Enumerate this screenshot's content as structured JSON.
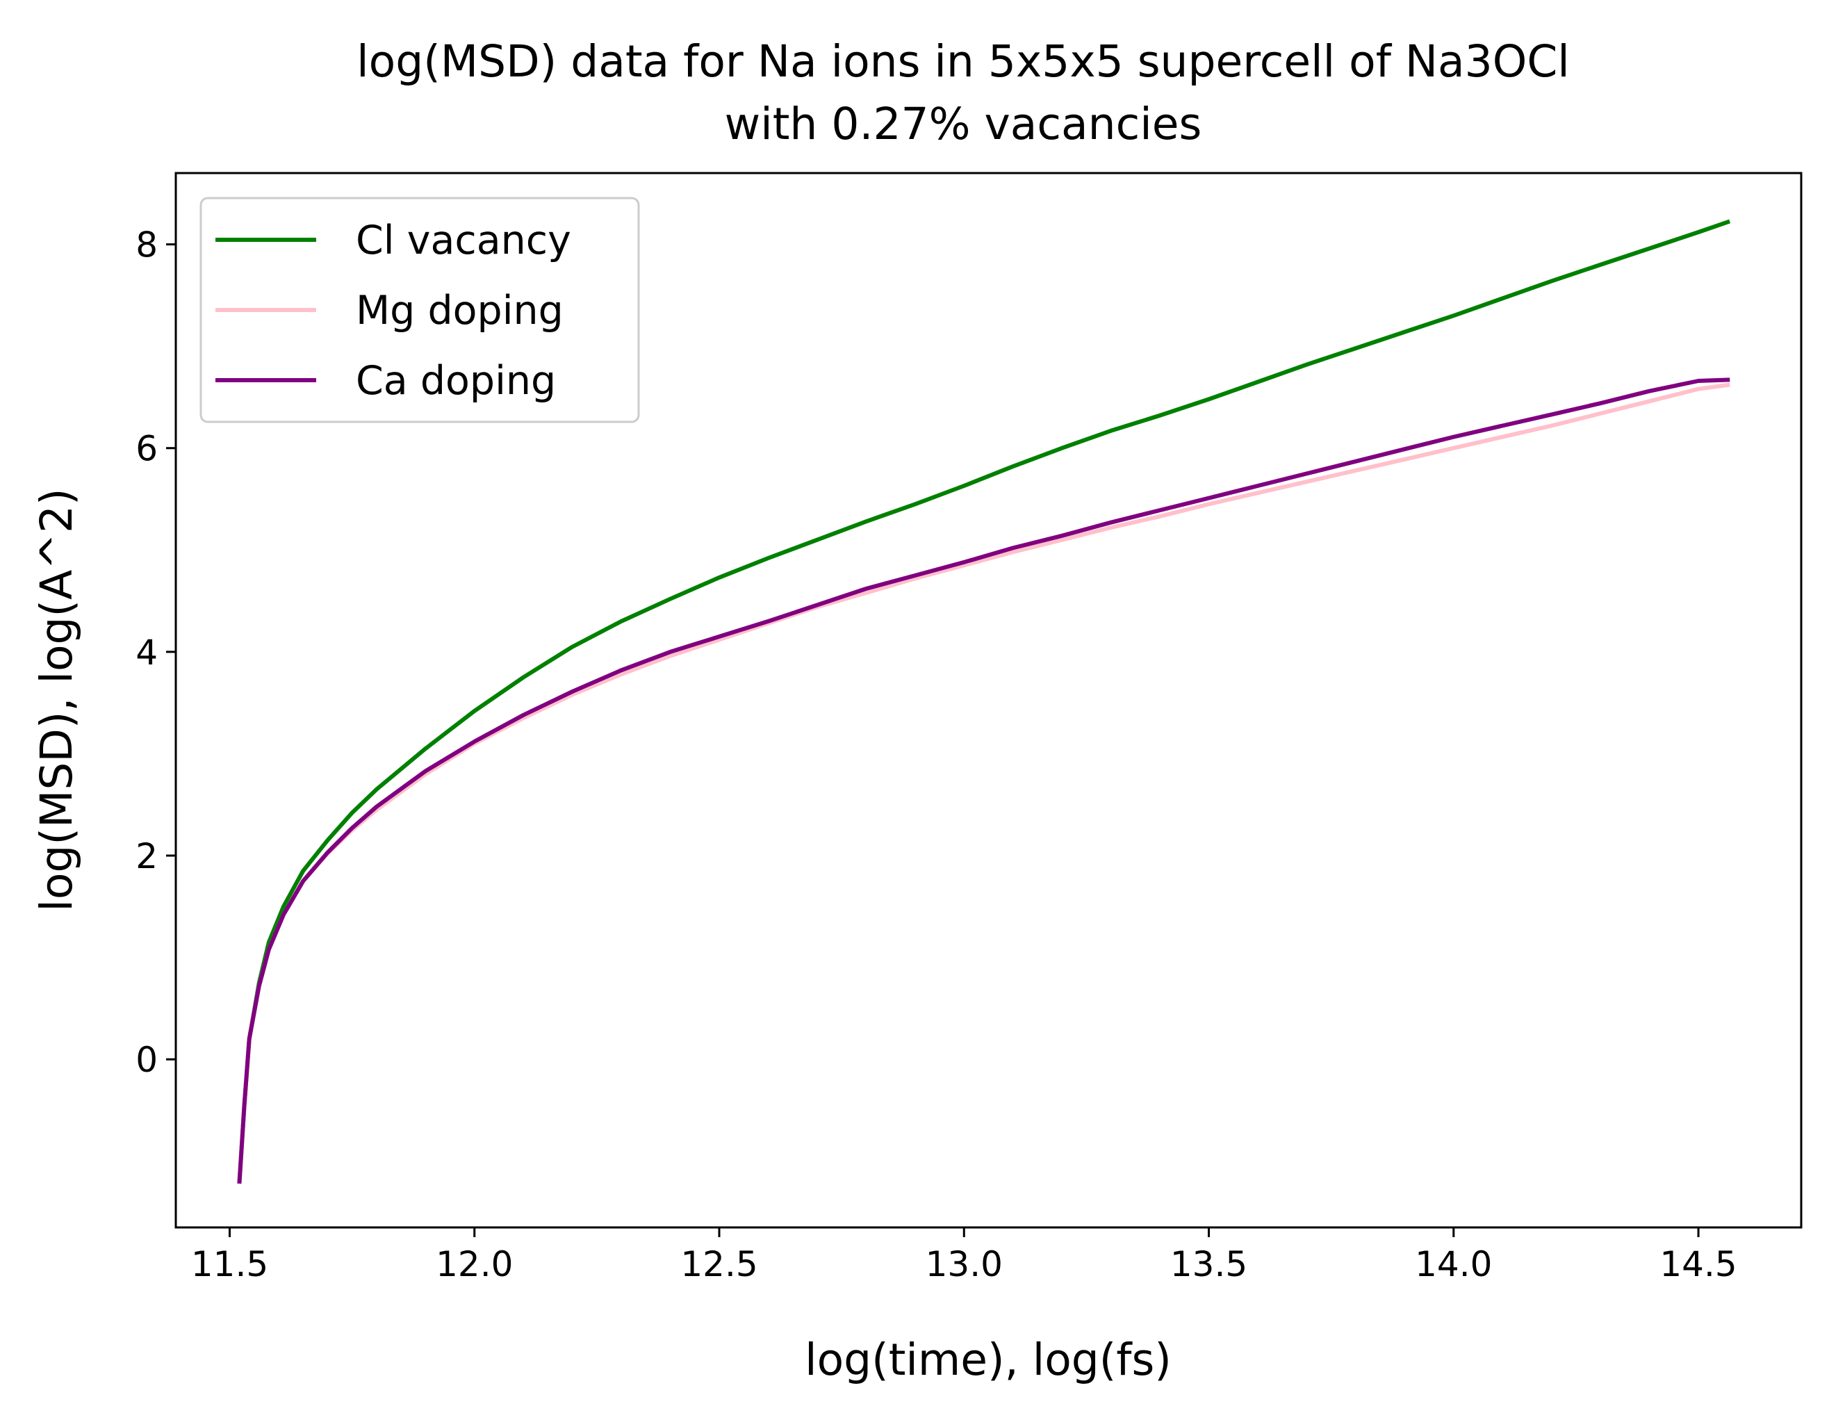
{
  "chart_data": {
    "type": "line",
    "title_line1": "log(MSD) data for Na ions in 5x5x5 supercell of Na3OCl",
    "title_line2": "with 0.27% vacancies",
    "xlabel": "log(time), log(fs)",
    "ylabel": "log(MSD), log(A^2)",
    "xlim": [
      11.39,
      14.71
    ],
    "ylim": [
      -1.65,
      8.7
    ],
    "xticks": [
      11.5,
      12.0,
      12.5,
      13.0,
      13.5,
      14.0,
      14.5
    ],
    "xtick_labels": [
      "11.5",
      "12.0",
      "12.5",
      "13.0",
      "13.5",
      "14.0",
      "14.5"
    ],
    "yticks": [
      0,
      2,
      4,
      6,
      8
    ],
    "ytick_labels": [
      "0",
      "2",
      "4",
      "6",
      "8"
    ],
    "grid": false,
    "legend_position": "top-left",
    "series": [
      {
        "name": "Cl vacancy",
        "color": "#008000",
        "x": [
          11.52,
          11.53,
          11.54,
          11.56,
          11.58,
          11.61,
          11.65,
          11.7,
          11.75,
          11.8,
          11.9,
          12.0,
          12.1,
          12.2,
          12.3,
          12.4,
          12.5,
          12.6,
          12.7,
          12.8,
          12.9,
          13.0,
          13.1,
          13.2,
          13.3,
          13.4,
          13.5,
          13.6,
          13.7,
          13.8,
          13.9,
          14.0,
          14.1,
          14.2,
          14.3,
          14.4,
          14.5,
          14.56
        ],
        "y": [
          -1.2,
          -0.45,
          0.2,
          0.75,
          1.15,
          1.5,
          1.85,
          2.15,
          2.42,
          2.65,
          3.05,
          3.42,
          3.75,
          4.05,
          4.3,
          4.52,
          4.73,
          4.92,
          5.1,
          5.28,
          5.45,
          5.63,
          5.82,
          6.0,
          6.17,
          6.32,
          6.48,
          6.65,
          6.82,
          6.98,
          7.14,
          7.3,
          7.47,
          7.64,
          7.8,
          7.96,
          8.12,
          8.22
        ]
      },
      {
        "name": "Mg doping",
        "color": "#ffc0cb",
        "x": [
          11.52,
          11.53,
          11.54,
          11.56,
          11.58,
          11.61,
          11.65,
          11.7,
          11.75,
          11.8,
          11.9,
          12.0,
          12.1,
          12.2,
          12.3,
          12.4,
          12.5,
          12.6,
          12.7,
          12.8,
          12.9,
          13.0,
          13.1,
          13.2,
          13.3,
          13.4,
          13.5,
          13.6,
          13.7,
          13.8,
          13.9,
          14.0,
          14.1,
          14.2,
          14.3,
          14.4,
          14.5,
          14.56
        ],
        "y": [
          -1.2,
          -0.45,
          0.2,
          0.72,
          1.08,
          1.42,
          1.75,
          2.02,
          2.25,
          2.45,
          2.8,
          3.1,
          3.35,
          3.58,
          3.78,
          3.96,
          4.12,
          4.28,
          4.44,
          4.58,
          4.72,
          4.85,
          4.98,
          5.1,
          5.22,
          5.33,
          5.45,
          5.56,
          5.67,
          5.78,
          5.89,
          6.0,
          6.11,
          6.22,
          6.34,
          6.46,
          6.58,
          6.62
        ]
      },
      {
        "name": "Ca doping",
        "color": "#800080",
        "x": [
          11.52,
          11.53,
          11.54,
          11.56,
          11.58,
          11.61,
          11.65,
          11.7,
          11.75,
          11.8,
          11.9,
          12.0,
          12.1,
          12.2,
          12.3,
          12.4,
          12.5,
          12.6,
          12.7,
          12.8,
          12.9,
          13.0,
          13.1,
          13.2,
          13.3,
          13.4,
          13.5,
          13.6,
          13.7,
          13.8,
          13.9,
          14.0,
          14.1,
          14.2,
          14.3,
          14.4,
          14.5,
          14.56
        ],
        "y": [
          -1.2,
          -0.45,
          0.2,
          0.72,
          1.08,
          1.42,
          1.75,
          2.03,
          2.27,
          2.48,
          2.83,
          3.12,
          3.38,
          3.61,
          3.82,
          4.0,
          4.15,
          4.3,
          4.46,
          4.62,
          4.75,
          4.88,
          5.02,
          5.14,
          5.27,
          5.39,
          5.51,
          5.63,
          5.75,
          5.87,
          5.99,
          6.11,
          6.22,
          6.33,
          6.44,
          6.56,
          6.66,
          6.67
        ]
      }
    ]
  }
}
